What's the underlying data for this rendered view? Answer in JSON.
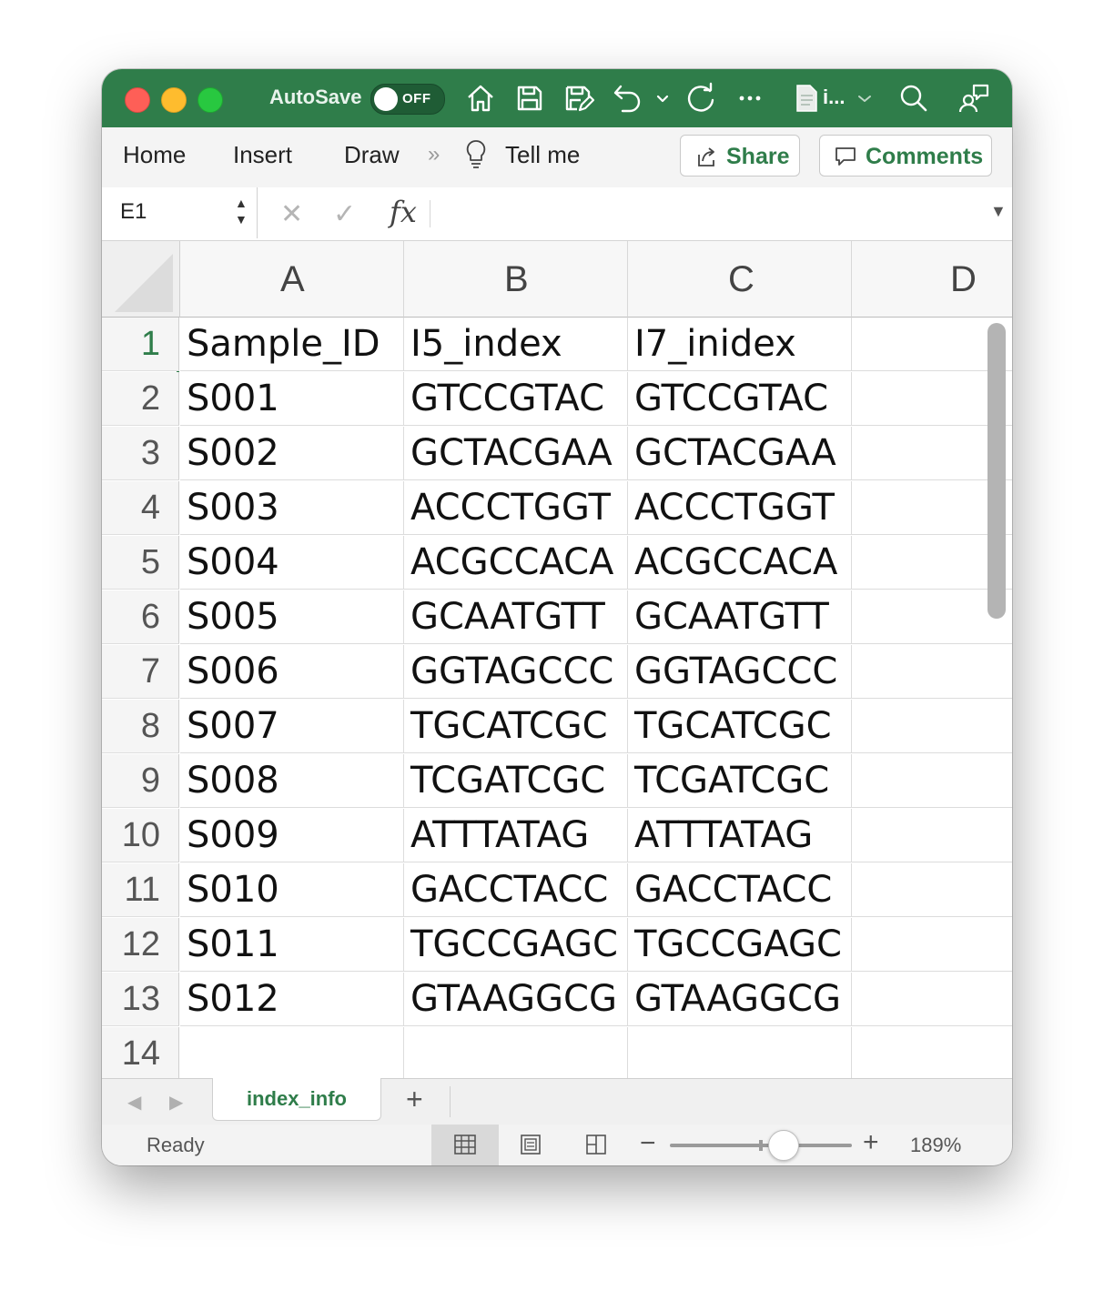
{
  "titlebar": {
    "autosave_label": "AutoSave",
    "autosave_state": "OFF",
    "file_name": "i...",
    "icons": [
      "home-icon",
      "save-icon",
      "save-as-icon",
      "undo-icon",
      "redo-icon",
      "more-icon",
      "file-icon",
      "search-icon",
      "share-people-icon"
    ]
  },
  "ribbon": {
    "tabs": [
      "Home",
      "Insert",
      "Draw"
    ],
    "tell_me": "Tell me",
    "share_label": "Share",
    "comments_label": "Comments"
  },
  "formula_bar": {
    "name_box": "E1",
    "fx_label": "fx",
    "formula_value": ""
  },
  "sheet": {
    "columns": [
      "A",
      "B",
      "C",
      "D"
    ],
    "rows": [
      {
        "num": "1",
        "cells": [
          "Sample_ID",
          "I5_index",
          "I7_inidex",
          ""
        ]
      },
      {
        "num": "2",
        "cells": [
          "S001",
          "GTCCGTAC",
          "GTCCGTAC",
          ""
        ]
      },
      {
        "num": "3",
        "cells": [
          "S002",
          "GCTACGAA",
          "GCTACGAA",
          ""
        ]
      },
      {
        "num": "4",
        "cells": [
          "S003",
          "ACCCTGGT",
          "ACCCTGGT",
          ""
        ]
      },
      {
        "num": "5",
        "cells": [
          "S004",
          "ACGCCACA",
          "ACGCCACA",
          ""
        ]
      },
      {
        "num": "6",
        "cells": [
          "S005",
          "GCAATGTT",
          "GCAATGTT",
          ""
        ]
      },
      {
        "num": "7",
        "cells": [
          "S006",
          "GGTAGCCC",
          "GGTAGCCC",
          ""
        ]
      },
      {
        "num": "8",
        "cells": [
          "S007",
          "TGCATCGC",
          "TGCATCGC",
          ""
        ]
      },
      {
        "num": "9",
        "cells": [
          "S008",
          "TCGATCGC",
          "TCGATCGC",
          ""
        ]
      },
      {
        "num": "10",
        "cells": [
          "S009",
          "ATTTATAG",
          "ATTTATAG",
          ""
        ]
      },
      {
        "num": "11",
        "cells": [
          "S010",
          "GACCTACC",
          "GACCTACC",
          ""
        ]
      },
      {
        "num": "12",
        "cells": [
          "S011",
          "TGCCGAGC",
          "TGCCGAGC",
          ""
        ]
      },
      {
        "num": "13",
        "cells": [
          "S012",
          "GTAAGGCG",
          "GTAAGGCG",
          ""
        ]
      },
      {
        "num": "14",
        "cells": [
          "",
          "",
          "",
          ""
        ]
      }
    ]
  },
  "sheet_tabs": {
    "active": "index_info",
    "add_label": "+"
  },
  "status_bar": {
    "status": "Ready",
    "zoom_minus": "−",
    "zoom_plus": "+",
    "zoom_level": "189%",
    "zoom_percent": 189
  },
  "colors": {
    "accent": "#2f7d4a",
    "titlebar": "#2f7d4a"
  }
}
